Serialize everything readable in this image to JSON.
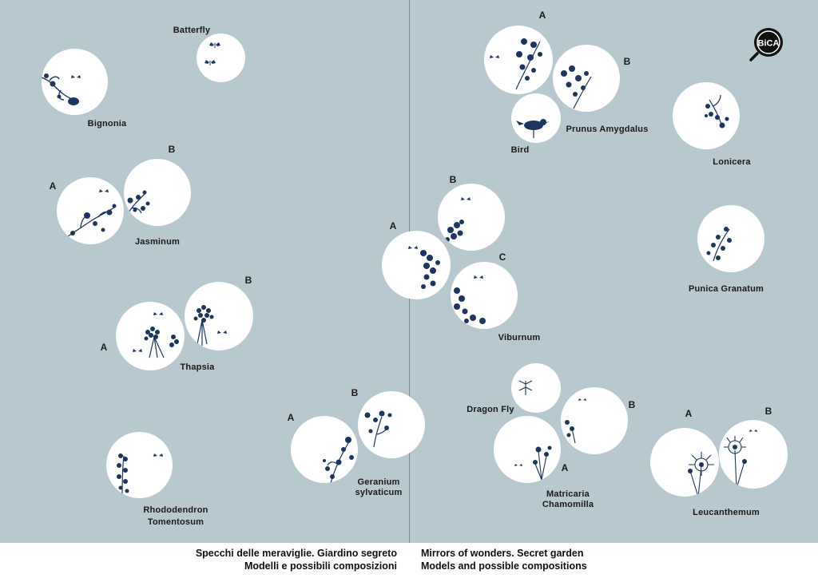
{
  "footer": {
    "it_line1": "Specchi delle meraviglie. Giardino segreto",
    "it_line2": "Modelli e possibili composizioni",
    "en_line1": "Mirrors of wonders. Secret garden",
    "en_line2": "Models and possible compositions"
  },
  "logo": {
    "text": "BiCA",
    "icon": "magnifier-logo"
  },
  "colors": {
    "background": "#b8c8cf",
    "ink": "#1d3560",
    "circle": "#ffffff"
  },
  "mirrors": [
    {
      "name": "Batterfly",
      "letter": ""
    },
    {
      "name": "Bignonia",
      "letter": ""
    },
    {
      "name": "Jasminum",
      "letter": "A"
    },
    {
      "name": "Jasminum",
      "letter": "B"
    },
    {
      "name": "Thapsia",
      "letter": "A"
    },
    {
      "name": "Thapsia",
      "letter": "B"
    },
    {
      "name": "Rhododendron Tomentosum",
      "letter": ""
    },
    {
      "name": "Geranium sylvaticum",
      "letter": "A"
    },
    {
      "name": "Geranium sylvaticum",
      "letter": "B"
    },
    {
      "name": "Prunus Amygdalus",
      "letter": "A"
    },
    {
      "name": "Prunus Amygdalus",
      "letter": "B"
    },
    {
      "name": "Bird",
      "letter": ""
    },
    {
      "name": "Lonicera",
      "letter": ""
    },
    {
      "name": "Viburnum",
      "letter": "A"
    },
    {
      "name": "Viburnum",
      "letter": "B"
    },
    {
      "name": "Viburnum",
      "letter": "C"
    },
    {
      "name": "Punica Granatum",
      "letter": ""
    },
    {
      "name": "Dragon Fly",
      "letter": ""
    },
    {
      "name": "Matricaria Chamomilla",
      "letter": "A"
    },
    {
      "name": "Matricaria Chamomilla",
      "letter": "B"
    },
    {
      "name": "Leucanthemum",
      "letter": "A"
    },
    {
      "name": "Leucanthemum",
      "letter": "B"
    }
  ],
  "labels": {
    "batterfly": "Batterfly",
    "bignonia": "Bignonia",
    "jasminum": "Jasminum",
    "thapsia": "Thapsia",
    "rhododendron_1": "Rhododendron",
    "rhododendron_2": "Tomentosum",
    "geranium_1": "Geranium",
    "geranium_2": "sylvaticum",
    "prunus": "Prunus Amygdalus",
    "bird": "Bird",
    "lonicera": "Lonicera",
    "viburnum": "Viburnum",
    "punica": "Punica Granatum",
    "dragonfly": "Dragon Fly",
    "matricaria_1": "Matricaria",
    "matricaria_2": "Chamomilla",
    "leucanthemum": "Leucanthemum"
  }
}
